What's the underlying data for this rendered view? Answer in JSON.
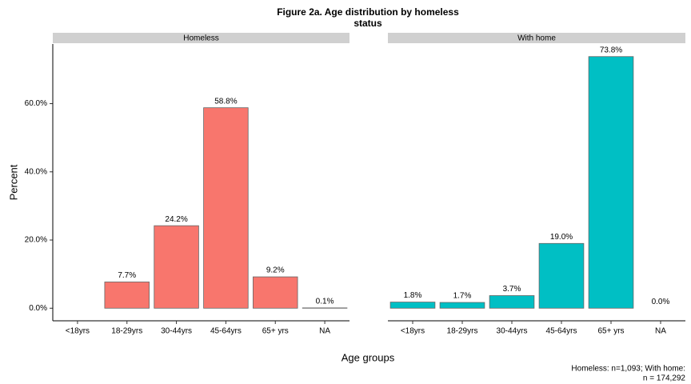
{
  "title": [
    "Figure 2a. Age distribution by homeless",
    "status"
  ],
  "x_label": "Age groups",
  "y_label": "Percent",
  "caption": [
    "Homeless: n=1,093; With home:",
    "n = 174,292"
  ],
  "chart_data": [
    {
      "type": "bar",
      "title": "Homeless",
      "color": "#f8766d",
      "categories": [
        "<18yrs",
        "18-29yrs",
        "30-44yrs",
        "45-64yrs",
        "65+ yrs",
        "NA"
      ],
      "values": [
        null,
        7.7,
        24.2,
        58.8,
        9.2,
        0.1
      ],
      "value_labels": [
        null,
        "7.7%",
        "24.2%",
        "58.8%",
        "9.2%",
        "0.1%"
      ],
      "ylim": [
        -3.69,
        77.49
      ],
      "yticks": [
        {
          "value": 0,
          "label": "0.0%"
        },
        {
          "value": 20,
          "label": "20.0%"
        },
        {
          "value": 40,
          "label": "40.0%"
        },
        {
          "value": 60,
          "label": "60.0%"
        }
      ]
    },
    {
      "type": "bar",
      "title": "With home",
      "color": "#00bfc4",
      "categories": [
        "<18yrs",
        "18-29yrs",
        "30-44yrs",
        "45-64yrs",
        "65+ yrs",
        "NA"
      ],
      "values": [
        1.8,
        1.7,
        3.7,
        19.0,
        73.8,
        0.0
      ],
      "value_labels": [
        "1.8%",
        "1.7%",
        "3.7%",
        "19.0%",
        "73.8%",
        "0.0%"
      ],
      "ylim": [
        -3.69,
        77.49
      ],
      "yticks": [
        {
          "value": 0,
          "label": "0.0%"
        },
        {
          "value": 20,
          "label": "20.0%"
        },
        {
          "value": 40,
          "label": "40.0%"
        },
        {
          "value": 60,
          "label": "60.0%"
        }
      ]
    }
  ]
}
